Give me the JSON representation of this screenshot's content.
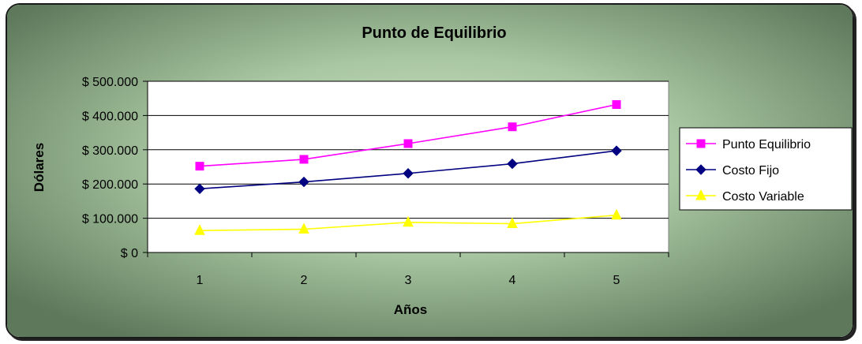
{
  "chart_data": {
    "type": "line",
    "title": "Punto de Equilibrio",
    "xlabel": "Años",
    "ylabel": "Dólares",
    "x": [
      1,
      2,
      3,
      4,
      5
    ],
    "ylim": [
      0,
      500000
    ],
    "yticks": [
      0,
      100000,
      200000,
      300000,
      400000,
      500000
    ],
    "ytick_labels": [
      "$ 0",
      "$ 100.000",
      "$ 200.000",
      "$ 300.000",
      "$ 400.000",
      "$ 500.000"
    ],
    "xtick_labels": [
      "1",
      "2",
      "3",
      "4",
      "5"
    ],
    "grid": true,
    "legend_position": "right",
    "series": [
      {
        "name": "Punto Equilibrio",
        "values": [
          252000,
          272000,
          318000,
          367000,
          432000
        ],
        "color": "#ff00ff",
        "marker": "square"
      },
      {
        "name": "Costo Fijo",
        "values": [
          186000,
          206000,
          231000,
          259000,
          297000
        ],
        "color": "#000080",
        "marker": "diamond"
      },
      {
        "name": "Costo Variable",
        "values": [
          64000,
          68000,
          88000,
          84000,
          109000
        ],
        "color": "#ffff00",
        "marker": "triangle"
      }
    ]
  },
  "colors": {
    "background_center": "#c8dcc0",
    "background_edge": "#5f7a5c",
    "plot_area": "#ffffff"
  }
}
